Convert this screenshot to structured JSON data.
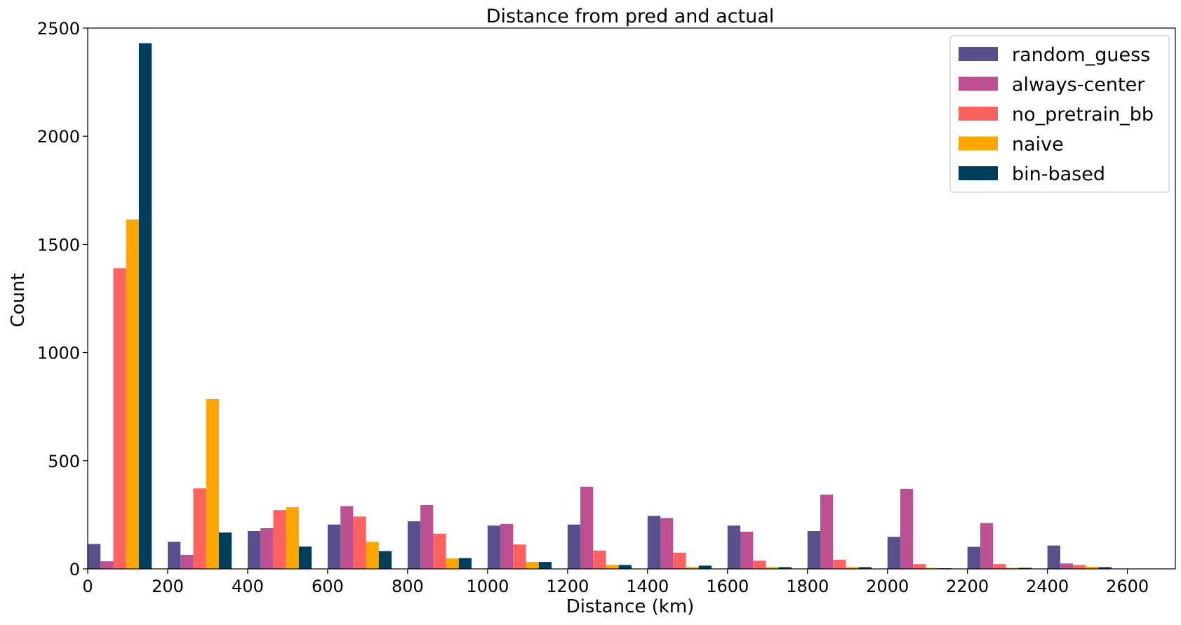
{
  "chart_data": {
    "type": "bar",
    "title": "Distance from pred and actual",
    "xlabel": "Distance (km)",
    "ylabel": "Count",
    "xlim": [
      0,
      2720
    ],
    "ylim": [
      0,
      2500
    ],
    "xticks": [
      "0",
      "200",
      "400",
      "600",
      "800",
      "1000",
      "1200",
      "1400",
      "1600",
      "1800",
      "2000",
      "2200",
      "2400",
      "2600"
    ],
    "yticks": [
      "0",
      "500",
      "1000",
      "1500",
      "2000",
      "2500"
    ],
    "bin_starts": [
      0,
      200,
      400,
      600,
      800,
      1000,
      1200,
      1400,
      1600,
      1800,
      2000,
      2200,
      2400
    ],
    "bin_width": 200,
    "grid": false,
    "legend_position": "top-right",
    "series": [
      {
        "name": "random_guess",
        "color": "#58508d",
        "values": [
          115,
          125,
          175,
          205,
          220,
          200,
          205,
          245,
          200,
          175,
          148,
          102,
          108
        ]
      },
      {
        "name": "always-center",
        "color": "#bc5090",
        "values": [
          35,
          65,
          188,
          290,
          295,
          208,
          380,
          235,
          172,
          343,
          370,
          212,
          25
        ]
      },
      {
        "name": "no_pretrain_bb",
        "color": "#ff6361",
        "values": [
          1390,
          372,
          272,
          242,
          163,
          113,
          85,
          75,
          38,
          42,
          22,
          22,
          18
        ]
      },
      {
        "name": "naive",
        "color": "#ffa600",
        "values": [
          1615,
          785,
          285,
          125,
          48,
          32,
          18,
          8,
          8,
          8,
          5,
          5,
          10
        ]
      },
      {
        "name": "bin-based",
        "color": "#003f5c",
        "values": [
          2430,
          168,
          103,
          82,
          50,
          32,
          18,
          15,
          8,
          8,
          3,
          5,
          8
        ]
      }
    ]
  }
}
